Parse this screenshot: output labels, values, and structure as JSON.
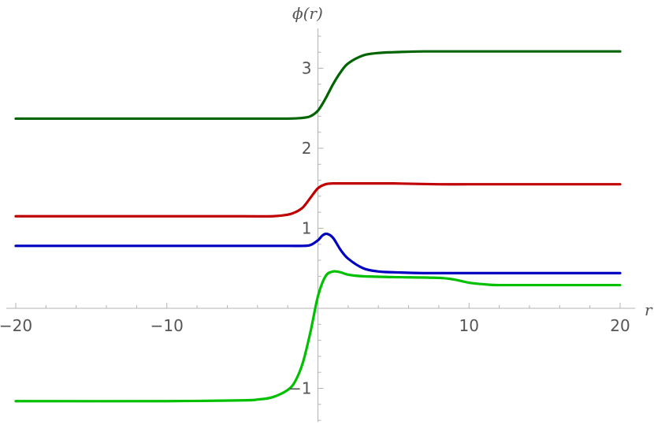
{
  "chart_data": {
    "type": "line",
    "title": "",
    "xlabel": "r",
    "ylabel": "ϕ(r)",
    "xlim": [
      -20,
      20
    ],
    "ylim": [
      -1.4,
      3.6
    ],
    "xticks": [
      -20,
      -10,
      10,
      20
    ],
    "xtick_labels": [
      "−20",
      "−10",
      "10",
      "20"
    ],
    "yticks": [
      -1,
      1,
      2,
      3
    ],
    "ytick_labels": [
      "−1",
      "1",
      "2",
      "3"
    ],
    "grid": false,
    "legend": "none",
    "series": [
      {
        "color": "#006400",
        "x": [
          -20,
          -10,
          -5,
          -2,
          -1,
          -0.5,
          0,
          0.5,
          1,
          1.5,
          2,
          3,
          4,
          5,
          7,
          10,
          15,
          20
        ],
        "y": [
          2.37,
          2.37,
          2.37,
          2.37,
          2.38,
          2.4,
          2.47,
          2.62,
          2.8,
          2.95,
          3.06,
          3.16,
          3.19,
          3.2,
          3.21,
          3.21,
          3.21,
          3.21
        ]
      },
      {
        "color": "#c00000",
        "x": [
          -20,
          -10,
          -5,
          -3,
          -2,
          -1.5,
          -1,
          -0.5,
          0,
          0.5,
          1,
          2,
          3,
          5,
          8,
          10,
          15,
          20
        ],
        "y": [
          1.15,
          1.15,
          1.15,
          1.15,
          1.17,
          1.2,
          1.26,
          1.38,
          1.5,
          1.55,
          1.56,
          1.56,
          1.56,
          1.56,
          1.55,
          1.55,
          1.55,
          1.55
        ]
      },
      {
        "color": "#0000c0",
        "x": [
          -20,
          -10,
          -5,
          -2,
          -1,
          -0.5,
          0,
          0.3,
          0.6,
          1,
          1.5,
          2,
          3,
          4,
          5,
          7,
          10,
          15,
          20
        ],
        "y": [
          0.78,
          0.78,
          0.78,
          0.78,
          0.78,
          0.79,
          0.85,
          0.91,
          0.93,
          0.88,
          0.73,
          0.62,
          0.5,
          0.46,
          0.45,
          0.44,
          0.44,
          0.44,
          0.44
        ]
      },
      {
        "color": "#00c000",
        "x": [
          -20,
          -10,
          -5,
          -4,
          -3,
          -2,
          -1.5,
          -1,
          -0.5,
          0,
          0.5,
          1,
          1.5,
          2,
          3,
          5,
          8,
          9,
          10,
          11,
          12,
          15,
          20
        ],
        "y": [
          -1.16,
          -1.16,
          -1.15,
          -1.14,
          -1.11,
          -1.02,
          -0.91,
          -0.68,
          -0.3,
          0.15,
          0.4,
          0.46,
          0.45,
          0.42,
          0.4,
          0.39,
          0.38,
          0.36,
          0.32,
          0.3,
          0.29,
          0.29,
          0.29
        ]
      }
    ]
  }
}
